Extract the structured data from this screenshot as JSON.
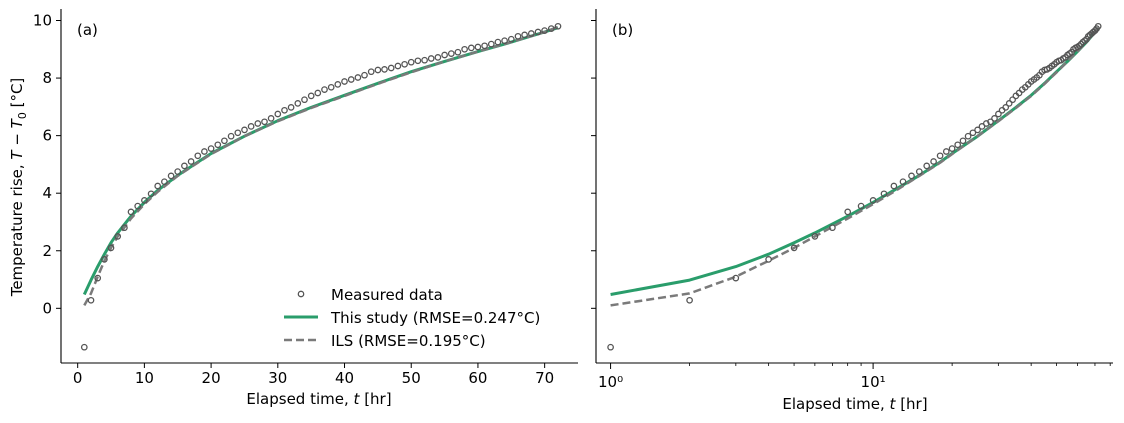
{
  "chart_data": [
    {
      "type": "line",
      "panel_label": "(a)",
      "xscale": "linear",
      "xlabel": "Elapsed time, t [hr]",
      "ylabel": "Temperature rise, T − T₀ [°C]",
      "xlim": [
        -2.5,
        75
      ],
      "ylim": [
        -1.9,
        10.4
      ],
      "xticks": [
        0,
        10,
        20,
        30,
        40,
        50,
        60,
        70
      ],
      "yticks": [
        0,
        2,
        4,
        6,
        8,
        10
      ],
      "grid": false,
      "legend": {
        "placement": "bottom-right",
        "entries": [
          "Measured data",
          "This study (RMSE=0.247°C)",
          "ILS (RMSE=0.195°C)"
        ]
      },
      "series": [
        {
          "name": "Measured data",
          "style": "scatter-open-circle",
          "color": "#555555",
          "x": [
            1,
            2,
            3,
            4,
            5,
            6,
            7,
            8,
            9,
            10,
            11,
            12,
            13,
            14,
            15,
            16,
            17,
            18,
            19,
            20,
            21,
            22,
            23,
            24,
            25,
            26,
            27,
            28,
            29,
            30,
            31,
            32,
            33,
            34,
            35,
            36,
            37,
            38,
            39,
            40,
            41,
            42,
            43,
            44,
            45,
            46,
            47,
            48,
            49,
            50,
            51,
            52,
            53,
            54,
            55,
            56,
            57,
            58,
            59,
            60,
            61,
            62,
            63,
            64,
            65,
            66,
            67,
            68,
            69,
            70,
            71,
            72
          ],
          "values": [
            -1.35,
            0.28,
            1.05,
            1.7,
            2.1,
            2.5,
            2.8,
            3.35,
            3.55,
            3.75,
            3.98,
            4.25,
            4.4,
            4.6,
            4.75,
            4.95,
            5.1,
            5.3,
            5.45,
            5.55,
            5.68,
            5.82,
            5.98,
            6.1,
            6.2,
            6.32,
            6.42,
            6.48,
            6.6,
            6.75,
            6.88,
            6.98,
            7.12,
            7.25,
            7.38,
            7.48,
            7.6,
            7.68,
            7.78,
            7.88,
            7.95,
            8.02,
            8.1,
            8.22,
            8.28,
            8.3,
            8.35,
            8.42,
            8.48,
            8.55,
            8.6,
            8.62,
            8.68,
            8.72,
            8.8,
            8.85,
            8.9,
            9.0,
            9.05,
            9.08,
            9.12,
            9.18,
            9.25,
            9.3,
            9.35,
            9.45,
            9.5,
            9.55,
            9.6,
            9.65,
            9.72,
            9.8
          ]
        },
        {
          "name": "This study (RMSE=0.247°C)",
          "style": "solid",
          "color": "#2a9d6b",
          "x": [
            1,
            2,
            3,
            4,
            5,
            6,
            8,
            10,
            12,
            15,
            18,
            20,
            25,
            30,
            35,
            40,
            45,
            50,
            55,
            60,
            65,
            70,
            72
          ],
          "values": [
            0.48,
            0.98,
            1.45,
            1.88,
            2.28,
            2.62,
            3.2,
            3.68,
            4.1,
            4.62,
            5.08,
            5.38,
            5.98,
            6.52,
            6.98,
            7.4,
            7.82,
            8.22,
            8.58,
            8.92,
            9.25,
            9.6,
            9.75
          ]
        },
        {
          "name": "ILS (RMSE=0.195°C)",
          "style": "dashed",
          "color": "#7a7a7a",
          "x": [
            1,
            2,
            3,
            4,
            5,
            6,
            8,
            10,
            12,
            15,
            18,
            20,
            25,
            30,
            35,
            40,
            45,
            50,
            55,
            60,
            65,
            70,
            72
          ],
          "values": [
            0.1,
            0.52,
            1.1,
            1.65,
            2.1,
            2.5,
            3.12,
            3.62,
            4.05,
            4.6,
            5.06,
            5.36,
            5.98,
            6.5,
            6.96,
            7.38,
            7.8,
            8.2,
            8.58,
            8.92,
            9.25,
            9.6,
            9.78
          ]
        }
      ]
    },
    {
      "type": "line",
      "panel_label": "(b)",
      "xscale": "log",
      "xlabel": "Elapsed time, t [hr]",
      "ylabel": "",
      "xlim": [
        0.88,
        82
      ],
      "ylim": [
        -1.9,
        10.4
      ],
      "xticks": [
        1,
        10
      ],
      "xticklabels": [
        "10⁰",
        "10¹"
      ],
      "yticks": [
        0,
        2,
        4,
        6,
        8,
        10
      ],
      "grid": false,
      "series_ref": "same data as panel (a)"
    }
  ]
}
